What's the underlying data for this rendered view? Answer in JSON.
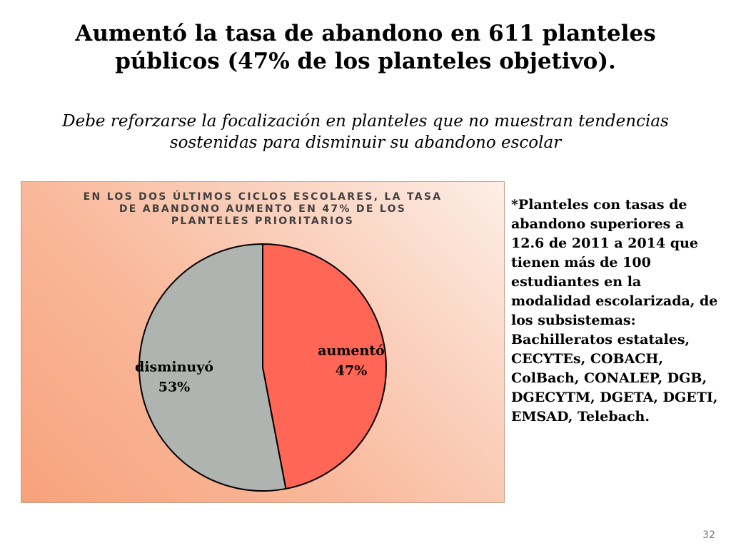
{
  "slide": {
    "title": "Aumentó la tasa de abandono en 611 planteles públicos (47% de los planteles objetivo).",
    "subtitle": "Debe reforzarse la focalización en planteles que no muestran tendencias sostenidas para disminuir su abandono escolar",
    "note": "*Planteles con tasas de abandono superiores a 12.6 de 2011 a 2014 que tienen más de 100 estudiantes en la modalidad escolarizada, de los subsistemas: Bachilleratos estatales, CECYTEs, COBACH, ColBach, CONALEP, DGB, DGECYTM, DGETA, DGETI, EMSAD, Telebach.",
    "page_number": "32"
  },
  "chart_data": {
    "type": "pie",
    "title": "EN LOS DOS ÚLTIMOS CICLOS ESCOLARES, LA TASA DE ABANDONO AUMENTO EN 47% DE LOS PLANTELES PRIORITARIOS",
    "slices": [
      {
        "label": "aumentó",
        "value": 47,
        "display": "47%",
        "color": "#ff6655"
      },
      {
        "label": "disminuyó",
        "value": 53,
        "display": "53%",
        "color": "#b0b4b0"
      }
    ],
    "start_angle": "12 o'clock, clockwise",
    "legend": "none"
  }
}
